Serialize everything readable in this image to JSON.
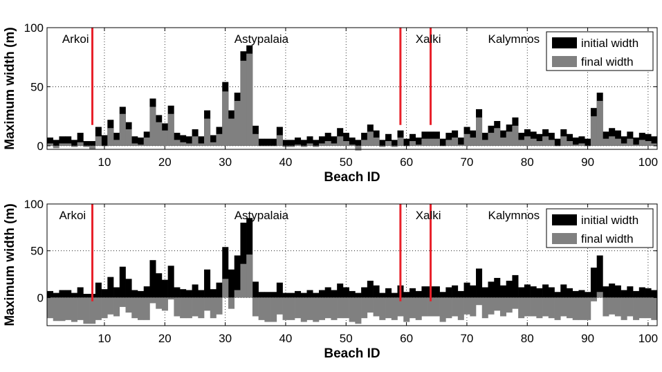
{
  "chart_data": [
    {
      "type": "bar",
      "stacking": "overlay",
      "xlabel": "Beach ID",
      "ylabel": "Maximum width (m)",
      "xlim": [
        0.5,
        101.5
      ],
      "ylim": [
        -3,
        100
      ],
      "xticks": [
        10,
        20,
        30,
        40,
        50,
        60,
        70,
        80,
        90,
        100
      ],
      "yticks": [
        0,
        50,
        100
      ],
      "grid": true,
      "legend": {
        "position": "top-right",
        "entries": [
          "initial width",
          "final width"
        ]
      },
      "colors": {
        "initial width": "#000000",
        "final width": "#808080",
        "divider": "#e8202a"
      },
      "regions": [
        {
          "label": "Arkoi",
          "x": 3
        },
        {
          "label": "Astypalaia",
          "x": 31.5
        },
        {
          "label": "Xalki",
          "x": 61.5
        },
        {
          "label": "Kalymnos",
          "x": 73.5
        }
      ],
      "dividers": [
        8,
        59,
        64
      ],
      "x": [
        1,
        2,
        3,
        4,
        5,
        6,
        7,
        8,
        9,
        10,
        11,
        12,
        13,
        14,
        15,
        16,
        17,
        18,
        19,
        20,
        21,
        22,
        23,
        24,
        25,
        26,
        27,
        28,
        29,
        30,
        31,
        32,
        33,
        34,
        35,
        36,
        37,
        38,
        39,
        40,
        41,
        42,
        43,
        44,
        45,
        46,
        47,
        48,
        49,
        50,
        51,
        52,
        53,
        54,
        55,
        56,
        57,
        58,
        59,
        60,
        61,
        62,
        63,
        64,
        65,
        66,
        67,
        68,
        69,
        70,
        71,
        72,
        73,
        74,
        75,
        76,
        77,
        78,
        79,
        80,
        81,
        82,
        83,
        84,
        85,
        86,
        87,
        88,
        89,
        90,
        91,
        92,
        93,
        94,
        95,
        96,
        97,
        98,
        99,
        100,
        101
      ],
      "series": [
        {
          "name": "initial width",
          "values": [
            7,
            5,
            8,
            8,
            5,
            11,
            4,
            4,
            16,
            9,
            22,
            11,
            33,
            20,
            8,
            7,
            12,
            40,
            26,
            19,
            34,
            11,
            9,
            8,
            14,
            8,
            30,
            9,
            16,
            54,
            30,
            45,
            80,
            85,
            17,
            6,
            6,
            6,
            16,
            5,
            5,
            7,
            5,
            8,
            5,
            8,
            11,
            8,
            15,
            11,
            7,
            5,
            11,
            18,
            13,
            5,
            10,
            5,
            13,
            6,
            10,
            7,
            12,
            12,
            12,
            6,
            11,
            13,
            7,
            16,
            13,
            31,
            11,
            17,
            21,
            13,
            18,
            24,
            11,
            14,
            12,
            10,
            14,
            11,
            6,
            14,
            10,
            7,
            8,
            6,
            32,
            45,
            12,
            15,
            13,
            8,
            12,
            7,
            11,
            10,
            8
          ]
        },
        {
          "name": "final width",
          "values": [
            2,
            -2,
            2,
            2,
            -1,
            3,
            -1,
            -3,
            8,
            0,
            15,
            5,
            27,
            14,
            2,
            1,
            7,
            33,
            20,
            13,
            27,
            5,
            3,
            2,
            8,
            2,
            23,
            3,
            10,
            46,
            23,
            38,
            72,
            78,
            10,
            0,
            0,
            0,
            9,
            -1,
            -1,
            1,
            -1,
            2,
            -1,
            2,
            4,
            2,
            8,
            4,
            1,
            -4,
            5,
            12,
            7,
            -1,
            4,
            -1,
            7,
            0,
            4,
            1,
            6,
            6,
            6,
            0,
            5,
            7,
            1,
            10,
            7,
            24,
            5,
            11,
            15,
            7,
            12,
            17,
            5,
            8,
            6,
            4,
            8,
            5,
            0,
            8,
            4,
            1,
            2,
            0,
            25,
            38,
            6,
            8,
            6,
            2,
            6,
            1,
            5,
            4,
            2
          ]
        }
      ]
    },
    {
      "type": "bar",
      "stacking": "overlay",
      "xlabel": "Beach ID",
      "ylabel": "Maximum width (m)",
      "xlim": [
        0.5,
        101.5
      ],
      "ylim": [
        -30,
        100
      ],
      "xticks": [
        10,
        20,
        30,
        40,
        50,
        60,
        70,
        80,
        90,
        100
      ],
      "yticks": [
        0,
        50,
        100
      ],
      "grid": true,
      "legend": {
        "position": "top-right",
        "entries": [
          "initial width",
          "final width"
        ]
      },
      "colors": {
        "initial width": "#000000",
        "final width": "#808080",
        "divider": "#e8202a"
      },
      "regions": [
        {
          "label": "Arkoi",
          "x": 2.5
        },
        {
          "label": "Astypalaia",
          "x": 31.5
        },
        {
          "label": "Xalki",
          "x": 61.5
        },
        {
          "label": "Kalymnos",
          "x": 73.5
        }
      ],
      "dividers": [
        8,
        59,
        64
      ],
      "x": [
        1,
        2,
        3,
        4,
        5,
        6,
        7,
        8,
        9,
        10,
        11,
        12,
        13,
        14,
        15,
        16,
        17,
        18,
        19,
        20,
        21,
        22,
        23,
        24,
        25,
        26,
        27,
        28,
        29,
        30,
        31,
        32,
        33,
        34,
        35,
        36,
        37,
        38,
        39,
        40,
        41,
        42,
        43,
        44,
        45,
        46,
        47,
        48,
        49,
        50,
        51,
        52,
        53,
        54,
        55,
        56,
        57,
        58,
        59,
        60,
        61,
        62,
        63,
        64,
        65,
        66,
        67,
        68,
        69,
        70,
        71,
        72,
        73,
        74,
        75,
        76,
        77,
        78,
        79,
        80,
        81,
        82,
        83,
        84,
        85,
        86,
        87,
        88,
        89,
        90,
        91,
        92,
        93,
        94,
        95,
        96,
        97,
        98,
        99,
        100,
        101
      ],
      "series": [
        {
          "name": "initial width",
          "values": [
            7,
            5,
            8,
            8,
            5,
            11,
            4,
            4,
            16,
            9,
            22,
            11,
            33,
            20,
            8,
            7,
            12,
            40,
            26,
            19,
            34,
            11,
            9,
            8,
            14,
            8,
            30,
            9,
            16,
            54,
            30,
            45,
            80,
            85,
            17,
            6,
            6,
            6,
            16,
            5,
            5,
            7,
            5,
            8,
            5,
            8,
            11,
            8,
            15,
            11,
            7,
            5,
            11,
            18,
            13,
            5,
            10,
            5,
            13,
            6,
            10,
            7,
            12,
            12,
            12,
            6,
            11,
            13,
            7,
            16,
            13,
            31,
            11,
            17,
            21,
            13,
            18,
            24,
            11,
            14,
            12,
            10,
            14,
            11,
            6,
            14,
            10,
            7,
            8,
            6,
            32,
            45,
            12,
            15,
            13,
            8,
            12,
            7,
            11,
            10,
            8
          ]
        },
        {
          "name": "final width",
          "values": [
            -22,
            -25,
            -25,
            -24,
            -26,
            -24,
            -28,
            -28,
            -24,
            -22,
            -18,
            -20,
            -10,
            -16,
            -22,
            -24,
            -24,
            -6,
            -12,
            -14,
            -2,
            -20,
            -22,
            -22,
            -20,
            -22,
            -14,
            -22,
            -18,
            20,
            -12,
            8,
            36,
            46,
            -20,
            -24,
            -26,
            -26,
            -18,
            -24,
            -24,
            -22,
            -26,
            -24,
            -26,
            -24,
            -22,
            -24,
            -22,
            -22,
            -26,
            -28,
            -22,
            -16,
            -20,
            -24,
            -22,
            -24,
            -20,
            -26,
            -22,
            -24,
            -20,
            -20,
            -20,
            -26,
            -22,
            -20,
            -24,
            -18,
            -20,
            -8,
            -22,
            -18,
            -14,
            -20,
            -16,
            -12,
            -22,
            -20,
            -20,
            -22,
            -20,
            -22,
            -24,
            -20,
            -22,
            -24,
            -24,
            -24,
            -4,
            6,
            -20,
            -18,
            -20,
            -24,
            -20,
            -24,
            -22,
            -22,
            -24
          ]
        }
      ]
    }
  ]
}
